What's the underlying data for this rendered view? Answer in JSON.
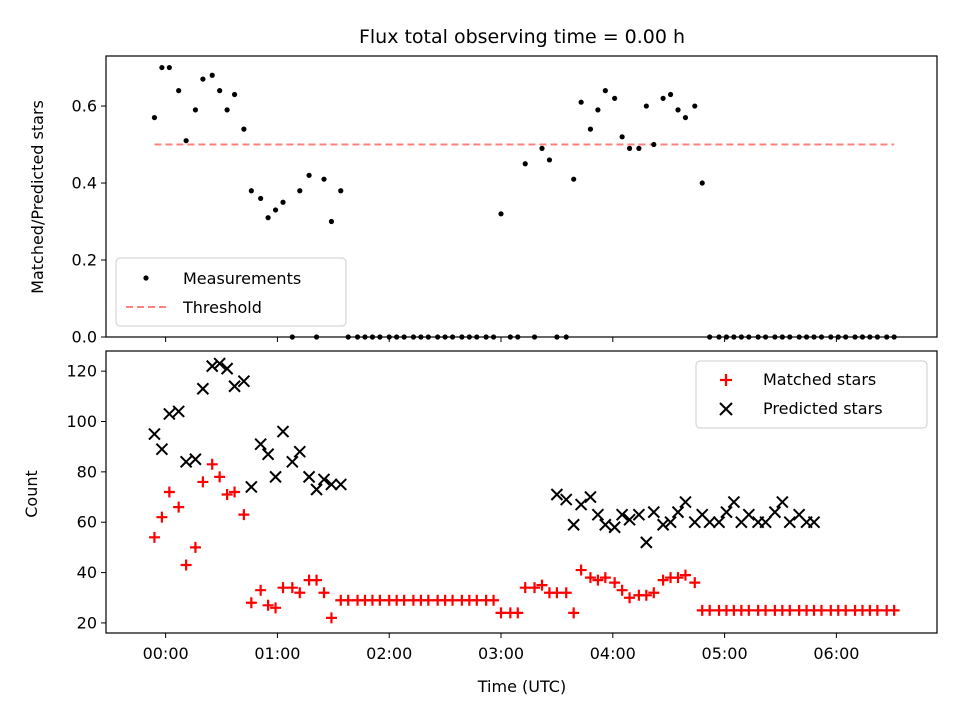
{
  "chart_data": [
    {
      "type": "scatter",
      "title": "Flux total observing time = 0.00 h",
      "xlabel": "",
      "ylabel": "Matched/Predicted stars",
      "xlim": [
        "23:28",
        "06:54"
      ],
      "ylim": [
        0,
        0.73
      ],
      "yticks": [
        0.0,
        0.2,
        0.4,
        0.6
      ],
      "ytick_labels": [
        "0.0",
        "0.2",
        "0.4",
        "0.6"
      ],
      "legend": {
        "position": "lower-left",
        "entries": [
          "Measurements",
          "Threshold"
        ]
      },
      "series": [
        {
          "name": "Measurements",
          "marker": "dot",
          "color": "#000000",
          "x": [
            "23:54",
            "23:58",
            "00:02",
            "00:07",
            "00:11",
            "00:16",
            "00:20",
            "00:25",
            "00:29",
            "00:33",
            "00:37",
            "00:42",
            "00:46",
            "00:51",
            "00:55",
            "00:59",
            "01:03",
            "01:08",
            "01:12",
            "01:17",
            "01:21",
            "01:25",
            "01:29",
            "01:34",
            "01:38",
            "01:43",
            "01:47",
            "01:51",
            "01:55",
            "02:00",
            "02:04",
            "02:08",
            "02:13",
            "02:17",
            "02:21",
            "02:26",
            "02:30",
            "02:34",
            "02:39",
            "02:43",
            "02:47",
            "02:52",
            "02:56",
            "03:00",
            "03:05",
            "03:09",
            "03:13",
            "03:18",
            "03:22",
            "03:26",
            "03:30",
            "03:35",
            "03:39",
            "03:43",
            "03:48",
            "03:52",
            "03:56",
            "04:01",
            "04:05",
            "04:09",
            "04:14",
            "04:18",
            "04:22",
            "04:27",
            "04:31",
            "04:35",
            "04:39",
            "04:44",
            "04:48",
            "04:52",
            "04:57",
            "05:01",
            "05:05",
            "05:09",
            "05:13",
            "05:18",
            "05:22",
            "05:27",
            "05:31",
            "05:35",
            "05:40",
            "05:44",
            "05:48",
            "05:52",
            "05:57",
            "06:01",
            "06:05",
            "06:10",
            "06:14",
            "06:18",
            "06:22",
            "06:27",
            "06:31"
          ],
          "y": [
            0.57,
            0.7,
            0.7,
            0.64,
            0.51,
            0.59,
            0.67,
            0.68,
            0.64,
            0.59,
            0.63,
            0.54,
            0.38,
            0.36,
            0.31,
            0.33,
            0.35,
            0.0,
            0.38,
            0.42,
            0.0,
            0.41,
            0.3,
            0.38,
            0.0,
            0.0,
            0.0,
            0.0,
            0.0,
            0.0,
            0.0,
            0.0,
            0.0,
            0.0,
            0.0,
            0.0,
            0.0,
            0.0,
            0.0,
            0.0,
            0.0,
            0.0,
            0.0,
            0.32,
            0.0,
            0.0,
            0.45,
            0.0,
            0.49,
            0.46,
            0.0,
            0.0,
            0.41,
            0.61,
            0.54,
            0.59,
            0.64,
            0.62,
            0.52,
            0.49,
            0.49,
            0.6,
            0.5,
            0.62,
            0.63,
            0.59,
            0.57,
            0.6,
            0.4,
            0.0,
            0.0,
            0.0,
            0.0,
            0.0,
            0.0,
            0.0,
            0.0,
            0.0,
            0.0,
            0.0,
            0.0,
            0.0,
            0.0,
            0.0,
            0.0,
            0.0,
            0.0,
            0.0,
            0.0,
            0.0,
            0.0,
            0.0,
            0.0
          ]
        },
        {
          "name": "Threshold",
          "marker": "dashed-line",
          "color": "#ff8080",
          "x": [
            "23:54",
            "06:31"
          ],
          "y": [
            0.5,
            0.5
          ]
        }
      ]
    },
    {
      "type": "scatter",
      "title": "",
      "xlabel": "Time (UTC)",
      "ylabel": "Count",
      "xlim": [
        "23:28",
        "06:54"
      ],
      "ylim": [
        16,
        128
      ],
      "xticks": [
        "00:00",
        "01:00",
        "02:00",
        "03:00",
        "04:00",
        "05:00",
        "06:00"
      ],
      "yticks": [
        20,
        40,
        60,
        80,
        100,
        120
      ],
      "ytick_labels": [
        "20",
        "40",
        "60",
        "80",
        "100",
        "120"
      ],
      "legend": {
        "position": "upper-right",
        "entries": [
          "Matched stars",
          "Predicted stars"
        ]
      },
      "series": [
        {
          "name": "Matched stars",
          "marker": "plus",
          "color": "#ff0000",
          "x": [
            "23:54",
            "23:58",
            "00:02",
            "00:07",
            "00:11",
            "00:16",
            "00:20",
            "00:25",
            "00:29",
            "00:33",
            "00:37",
            "00:42",
            "00:46",
            "00:51",
            "00:55",
            "00:59",
            "01:03",
            "01:08",
            "01:12",
            "01:17",
            "01:21",
            "01:25",
            "01:29",
            "01:34",
            "01:38",
            "01:43",
            "01:47",
            "01:51",
            "01:55",
            "02:00",
            "02:04",
            "02:08",
            "02:13",
            "02:17",
            "02:21",
            "02:26",
            "02:30",
            "02:34",
            "02:39",
            "02:43",
            "02:47",
            "02:52",
            "02:56",
            "03:00",
            "03:05",
            "03:09",
            "03:13",
            "03:18",
            "03:22",
            "03:26",
            "03:30",
            "03:35",
            "03:39",
            "03:43",
            "03:48",
            "03:52",
            "03:56",
            "04:01",
            "04:05",
            "04:09",
            "04:14",
            "04:18",
            "04:22",
            "04:27",
            "04:31",
            "04:35",
            "04:39",
            "04:44",
            "04:48",
            "04:52",
            "04:57",
            "05:01",
            "05:05",
            "05:09",
            "05:13",
            "05:18",
            "05:22",
            "05:27",
            "05:31",
            "05:35",
            "05:40",
            "05:44",
            "05:48",
            "05:52",
            "05:57",
            "06:01",
            "06:05",
            "06:10",
            "06:14",
            "06:18",
            "06:22",
            "06:27",
            "06:31"
          ],
          "y": [
            54,
            62,
            72,
            66,
            43,
            50,
            76,
            83,
            78,
            71,
            72,
            63,
            28,
            33,
            27,
            26,
            34,
            34,
            32,
            37,
            37,
            32,
            22,
            29,
            29,
            29,
            29,
            29,
            29,
            29,
            29,
            29,
            29,
            29,
            29,
            29,
            29,
            29,
            29,
            29,
            29,
            29,
            29,
            24,
            24,
            24,
            34,
            34,
            35,
            32,
            32,
            32,
            24,
            41,
            38,
            37,
            38,
            36,
            33,
            30,
            31,
            31,
            32,
            37,
            38,
            38,
            39,
            36,
            25,
            25,
            25,
            25,
            25,
            25,
            25,
            25,
            25,
            25,
            25,
            25,
            25,
            25,
            25,
            25,
            25,
            25,
            25,
            25,
            25,
            25,
            25,
            25,
            25
          ]
        },
        {
          "name": "Predicted stars",
          "marker": "x",
          "color": "#000000",
          "x": [
            "23:54",
            "23:58",
            "00:02",
            "00:07",
            "00:11",
            "00:16",
            "00:20",
            "00:25",
            "00:29",
            "00:33",
            "00:37",
            "00:42",
            "00:46",
            "00:51",
            "00:55",
            "00:59",
            "01:03",
            "01:08",
            "01:12",
            "01:17",
            "01:21",
            "01:25",
            "01:29",
            "01:34",
            "03:30",
            "03:35",
            "03:39",
            "03:43",
            "03:48",
            "03:52",
            "03:56",
            "04:01",
            "04:05",
            "04:09",
            "04:14",
            "04:18",
            "04:22",
            "04:27",
            "04:31",
            "04:35",
            "04:39",
            "04:44",
            "04:48",
            "04:52",
            "04:57",
            "05:01",
            "05:05",
            "05:09",
            "05:13",
            "05:18",
            "05:22",
            "05:27",
            "05:31",
            "05:35",
            "05:40",
            "05:44",
            "05:48"
          ],
          "y": [
            95,
            89,
            103,
            104,
            84,
            85,
            113,
            122,
            123,
            121,
            114,
            116,
            74,
            91,
            87,
            78,
            96,
            84,
            88,
            78,
            73,
            77,
            75,
            75,
            71,
            69,
            59,
            67,
            70,
            63,
            59,
            58,
            63,
            61,
            63,
            52,
            64,
            59,
            60,
            64,
            68,
            60,
            63,
            60,
            60,
            64,
            68,
            60,
            63,
            60,
            60,
            64,
            68,
            60,
            63,
            60,
            60
          ]
        }
      ]
    }
  ]
}
